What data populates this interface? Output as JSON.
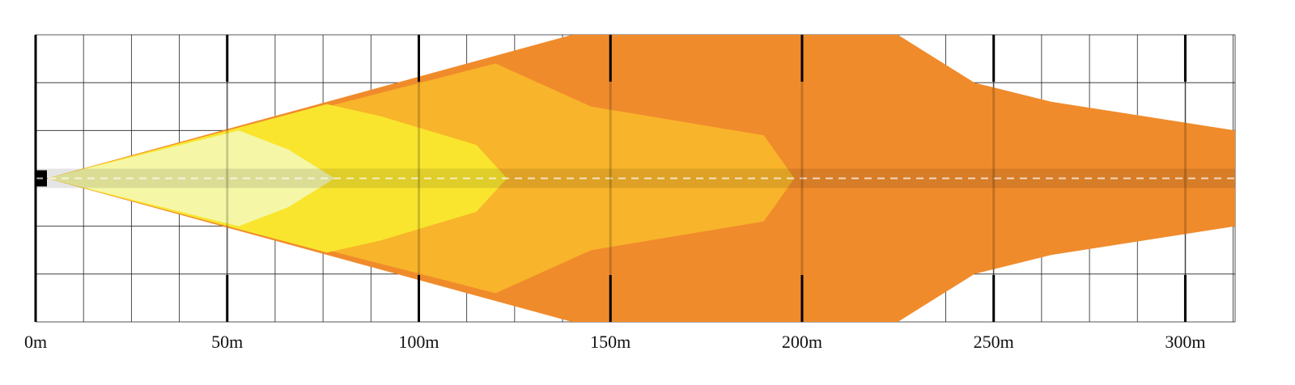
{
  "chart_data": {
    "type": "area",
    "title": "",
    "xlabel": "",
    "ylabel": "",
    "x_unit": "m",
    "xlim": [
      0,
      313
    ],
    "ylim": [
      -3,
      3
    ],
    "grid": true,
    "x_ticks": [
      {
        "value": 0,
        "label": "0m"
      },
      {
        "value": 50,
        "label": "50m"
      },
      {
        "value": 100,
        "label": "100m"
      },
      {
        "value": 150,
        "label": "150m"
      },
      {
        "value": 200,
        "label": "200m"
      },
      {
        "value": 250,
        "label": "250m"
      },
      {
        "value": 300,
        "label": "300m"
      }
    ],
    "minor_x_step": 12.5,
    "y_step": 1,
    "colors": {
      "zone_1": "#f5f7a6",
      "zone_2": "#f9e52e",
      "zone_3": "#f8b42a",
      "zone_4": "#f08b2c",
      "center_band": "#000000",
      "center_dash": "#ffffff"
    },
    "series": [
      {
        "color": "#f08b2c",
        "values": [
          [
            3,
            0
          ],
          [
            140,
            3
          ],
          [
            225,
            3
          ],
          [
            245,
            2
          ],
          [
            265,
            1.6
          ],
          [
            313,
            1
          ]
        ]
      },
      {
        "color": "#f8b42a",
        "values": [
          [
            3,
            0
          ],
          [
            120,
            2.4
          ],
          [
            145,
            1.5
          ],
          [
            190,
            0.9
          ],
          [
            198,
            0
          ]
        ]
      },
      {
        "color": "#f9e52e",
        "values": [
          [
            3,
            0
          ],
          [
            76,
            1.55
          ],
          [
            90,
            1.3
          ],
          [
            115,
            0.7
          ],
          [
            123,
            0
          ]
        ]
      },
      {
        "color": "#f5f7a6",
        "values": [
          [
            3,
            0
          ],
          [
            53,
            1
          ],
          [
            66,
            0.6
          ],
          [
            78,
            0
          ]
        ]
      }
    ]
  }
}
